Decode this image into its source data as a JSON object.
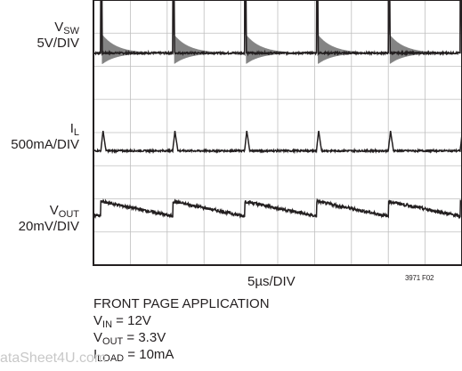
{
  "chart_data": {
    "type": "line",
    "title": "",
    "xlabel": "5µs/DIV",
    "figure_id": "3971 F02",
    "grid": true,
    "divisions": {
      "x": 10,
      "y": 8
    },
    "series": [
      {
        "name": "VSW",
        "sym": "V",
        "sub": "SW",
        "scale": "5V/DIV",
        "baseline_div": 6.4,
        "pulse_times_div": [
          0.2,
          2.15,
          4.1,
          6.05,
          8.0,
          9.95
        ],
        "pulse_height_div": 2.2,
        "ring_amplitude_div": 0.55,
        "ring_decay_div": 0.4
      },
      {
        "name": "IL",
        "sym": "I",
        "sub": "L",
        "scale": "500mA/DIV",
        "baseline_div": 3.45,
        "pulse_times_div": [
          0.2,
          2.15,
          4.1,
          6.05,
          8.0,
          9.95
        ],
        "pulse_height_div": 0.6
      },
      {
        "name": "VOUT",
        "sym": "V",
        "sub": "OUT",
        "scale": "20mV/DIV",
        "baseline_div": 1.7,
        "pulse_times_div": [
          0.2,
          2.15,
          4.1,
          6.05,
          8.0,
          9.95
        ],
        "sawtooth_amplitude_div": 0.45
      }
    ]
  },
  "conditions": {
    "heading": "FRONT PAGE APPLICATION",
    "vin_sym": "V",
    "vin_sub": "IN",
    "vin_val": " = 12V",
    "vout_sym": "V",
    "vout_sub": "OUT",
    "vout_val": " = 3.3V",
    "iload_sym": "I",
    "iload_sub": "LOAD",
    "iload_val": " = 10mA"
  },
  "watermark": "ataSheet4U.com",
  "colors": {
    "trace": "#231f20",
    "grid": "#bfbfbf",
    "frame": "#231f20",
    "ring": "#777777"
  }
}
